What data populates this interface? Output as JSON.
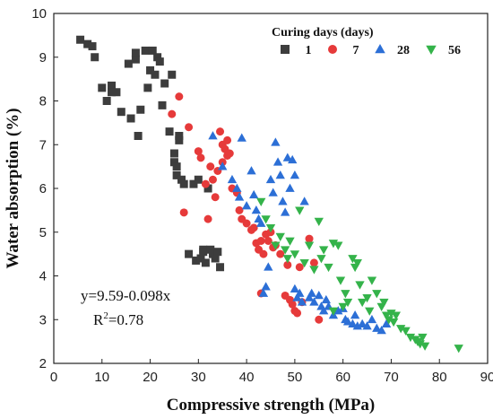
{
  "chart_data": {
    "type": "scatter",
    "xlabel": "Compressive strength (MPa)",
    "ylabel": "Water absorption (%)",
    "xlim": [
      0,
      90
    ],
    "ylim": [
      2,
      10
    ],
    "xticks": [
      0,
      10,
      20,
      30,
      40,
      50,
      60,
      70,
      80,
      90
    ],
    "yticks": [
      2,
      3,
      4,
      5,
      6,
      7,
      8,
      9,
      10
    ],
    "grid": false,
    "legend": {
      "title": "Curing days (days)",
      "placement": "top-right"
    },
    "annotation": {
      "equation": "y=9.59-0.098x",
      "r2_prefix": "R",
      "r2_sup": "2",
      "r2_value": "=0.78"
    },
    "series": [
      {
        "name": "1",
        "marker": "square",
        "color": "#3d3d3d",
        "points": [
          [
            5.5,
            9.4
          ],
          [
            7,
            9.3
          ],
          [
            8,
            9.25
          ],
          [
            8.5,
            9.0
          ],
          [
            10,
            8.3
          ],
          [
            11,
            8.0
          ],
          [
            12,
            8.35
          ],
          [
            12,
            8.2
          ],
          [
            13,
            8.2
          ],
          [
            14,
            7.75
          ],
          [
            15.5,
            8.85
          ],
          [
            16,
            7.6
          ],
          [
            17,
            8.95
          ],
          [
            17,
            9.1
          ],
          [
            17.5,
            7.2
          ],
          [
            18,
            7.8
          ],
          [
            19,
            9.15
          ],
          [
            19.5,
            8.3
          ],
          [
            20,
            8.7
          ],
          [
            20.5,
            9.15
          ],
          [
            21,
            8.6
          ],
          [
            21.5,
            9.0
          ],
          [
            22,
            8.9
          ],
          [
            22.5,
            7.9
          ],
          [
            23,
            8.4
          ],
          [
            24,
            7.3
          ],
          [
            24.5,
            8.6
          ],
          [
            25,
            6.8
          ],
          [
            25,
            6.6
          ],
          [
            25.5,
            6.5
          ],
          [
            25.5,
            6.3
          ],
          [
            26,
            7.1
          ],
          [
            26,
            7.2
          ],
          [
            26.5,
            6.2
          ],
          [
            27,
            6.1
          ],
          [
            28,
            4.5
          ],
          [
            29,
            6.1
          ],
          [
            29.5,
            4.35
          ],
          [
            30,
            6.2
          ],
          [
            30.5,
            4.4
          ],
          [
            31,
            4.6
          ],
          [
            31,
            4.55
          ],
          [
            31.5,
            4.3
          ],
          [
            32,
            6.0
          ],
          [
            32.5,
            4.6
          ],
          [
            33,
            4.5
          ],
          [
            33.5,
            4.4
          ],
          [
            34,
            4.55
          ],
          [
            34.5,
            4.2
          ]
        ]
      },
      {
        "name": "7",
        "marker": "circle",
        "color": "#e63a3a",
        "points": [
          [
            24.5,
            7.7
          ],
          [
            26,
            8.1
          ],
          [
            27,
            5.45
          ],
          [
            28,
            7.4
          ],
          [
            30,
            6.85
          ],
          [
            30.5,
            6.7
          ],
          [
            31.5,
            6.1
          ],
          [
            32,
            5.3
          ],
          [
            32.5,
            6.5
          ],
          [
            33,
            6.2
          ],
          [
            33.5,
            5.8
          ],
          [
            34,
            6.4
          ],
          [
            34.5,
            7.3
          ],
          [
            35,
            7.0
          ],
          [
            35,
            6.6
          ],
          [
            35.5,
            6.9
          ],
          [
            36,
            6.75
          ],
          [
            36,
            7.1
          ],
          [
            36.5,
            6.8
          ],
          [
            37,
            6.0
          ],
          [
            38,
            5.9
          ],
          [
            38.5,
            5.5
          ],
          [
            39,
            5.3
          ],
          [
            40,
            5.2
          ],
          [
            41,
            5.05
          ],
          [
            41.5,
            5.1
          ],
          [
            42,
            4.75
          ],
          [
            42.5,
            4.6
          ],
          [
            43,
            4.8
          ],
          [
            43,
            3.6
          ],
          [
            43.5,
            4.5
          ],
          [
            44,
            4.95
          ],
          [
            44.5,
            4.8
          ],
          [
            45,
            5.0
          ],
          [
            45.5,
            4.65
          ],
          [
            46,
            4.7
          ],
          [
            47,
            4.5
          ],
          [
            48,
            3.55
          ],
          [
            48.5,
            4.25
          ],
          [
            49,
            3.45
          ],
          [
            49.5,
            3.35
          ],
          [
            50,
            3.2
          ],
          [
            50.5,
            3.15
          ],
          [
            51,
            4.2
          ],
          [
            51.5,
            3.4
          ],
          [
            53,
            4.85
          ],
          [
            54,
            4.3
          ],
          [
            55,
            3.0
          ]
        ]
      },
      {
        "name": "28",
        "marker": "triangle-up",
        "color": "#2c6fd6",
        "points": [
          [
            33,
            7.2
          ],
          [
            35,
            6.5
          ],
          [
            37,
            6.2
          ],
          [
            38,
            6.0
          ],
          [
            38.5,
            5.8
          ],
          [
            39,
            7.15
          ],
          [
            40,
            5.6
          ],
          [
            41,
            6.4
          ],
          [
            41.5,
            5.85
          ],
          [
            42,
            5.5
          ],
          [
            42.5,
            5.3
          ],
          [
            43,
            5.2
          ],
          [
            43.5,
            3.6
          ],
          [
            44,
            3.75
          ],
          [
            44.5,
            4.2
          ],
          [
            45,
            6.2
          ],
          [
            45.5,
            5.9
          ],
          [
            46,
            7.05
          ],
          [
            46.5,
            6.6
          ],
          [
            47,
            6.3
          ],
          [
            47.5,
            5.7
          ],
          [
            48,
            5.45
          ],
          [
            48.5,
            6.7
          ],
          [
            49,
            6.0
          ],
          [
            49.5,
            6.65
          ],
          [
            50,
            6.3
          ],
          [
            50,
            3.7
          ],
          [
            50.5,
            3.5
          ],
          [
            51,
            3.6
          ],
          [
            51.5,
            3.4
          ],
          [
            52,
            5.7
          ],
          [
            53,
            3.5
          ],
          [
            53.5,
            3.6
          ],
          [
            54,
            3.4
          ],
          [
            55,
            3.55
          ],
          [
            55.5,
            3.3
          ],
          [
            56,
            3.2
          ],
          [
            56.5,
            3.45
          ],
          [
            57,
            3.3
          ],
          [
            58,
            3.1
          ],
          [
            59,
            3.2
          ],
          [
            60,
            3.25
          ],
          [
            60.5,
            3.0
          ],
          [
            61,
            2.95
          ],
          [
            62,
            2.9
          ],
          [
            62.5,
            3.1
          ],
          [
            63,
            2.85
          ],
          [
            64,
            2.9
          ],
          [
            65,
            2.85
          ],
          [
            66,
            3.0
          ],
          [
            67,
            2.8
          ],
          [
            68,
            2.75
          ],
          [
            69,
            2.9
          ]
        ]
      },
      {
        "name": "56",
        "marker": "triangle-down",
        "color": "#34b34a",
        "points": [
          [
            43,
            5.7
          ],
          [
            44,
            5.3
          ],
          [
            45,
            5.1
          ],
          [
            46,
            4.7
          ],
          [
            47,
            4.9
          ],
          [
            48,
            4.6
          ],
          [
            48.5,
            4.4
          ],
          [
            49,
            4.8
          ],
          [
            50,
            4.5
          ],
          [
            51,
            5.5
          ],
          [
            52,
            4.3
          ],
          [
            53,
            4.7
          ],
          [
            54,
            4.15
          ],
          [
            55,
            5.25
          ],
          [
            55.5,
            4.4
          ],
          [
            56,
            4.6
          ],
          [
            57,
            4.2
          ],
          [
            58,
            4.75
          ],
          [
            58,
            3.2
          ],
          [
            59,
            4.7
          ],
          [
            59.5,
            3.9
          ],
          [
            60,
            3.3
          ],
          [
            60.5,
            3.6
          ],
          [
            61,
            3.4
          ],
          [
            62,
            4.4
          ],
          [
            62.5,
            4.2
          ],
          [
            63,
            4.3
          ],
          [
            63.5,
            3.8
          ],
          [
            64,
            3.4
          ],
          [
            65,
            3.5
          ],
          [
            65.5,
            3.2
          ],
          [
            66,
            3.9
          ],
          [
            67,
            3.6
          ],
          [
            68,
            3.3
          ],
          [
            68.5,
            3.4
          ],
          [
            69,
            3.1
          ],
          [
            69.5,
            3.0
          ],
          [
            70,
            3.15
          ],
          [
            70.5,
            2.95
          ],
          [
            71,
            3.1
          ],
          [
            72,
            2.8
          ],
          [
            73,
            2.75
          ],
          [
            74,
            2.6
          ],
          [
            75,
            2.55
          ],
          [
            75.5,
            2.5
          ],
          [
            76,
            2.45
          ],
          [
            76.5,
            2.6
          ],
          [
            77,
            2.4
          ],
          [
            84,
            2.35
          ]
        ]
      }
    ]
  }
}
